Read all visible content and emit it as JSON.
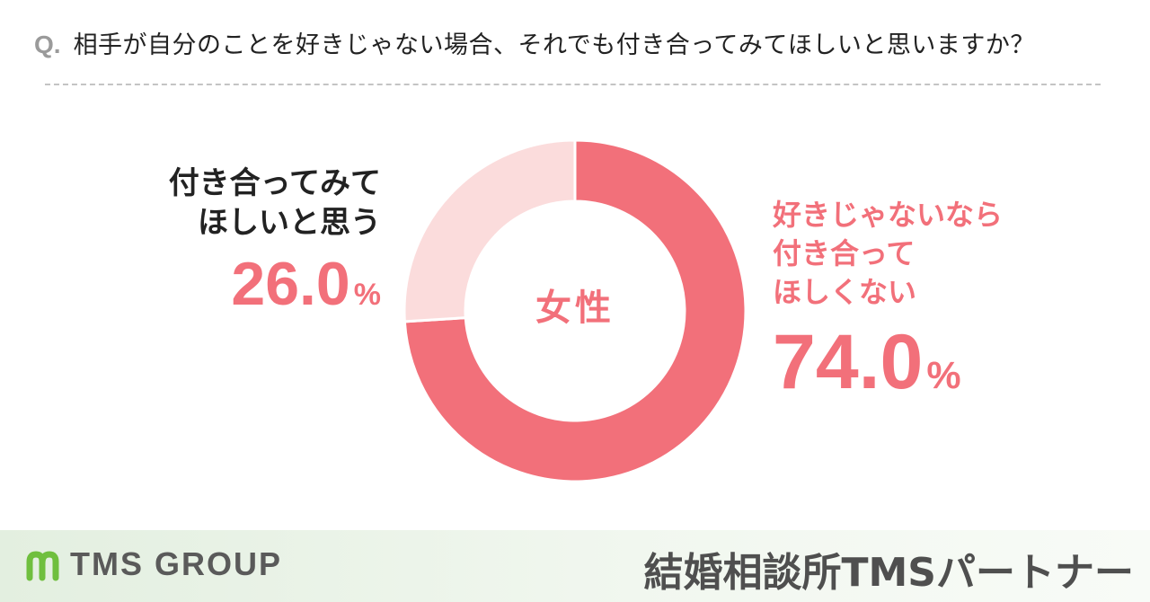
{
  "question": {
    "mark": "Q.",
    "text": "相手が自分のことを好きじゃない場合、それでも付き合ってみてほしいと思いますか？"
  },
  "chart_data": {
    "type": "donut",
    "center_label": "女性",
    "series": [
      {
        "label_lines": [
          "好きじゃないなら",
          "付き合って",
          "ほしくない"
        ],
        "value": 74.0,
        "value_text": "74.0",
        "unit": "%",
        "color": "#f2707a",
        "text_color": "#f2707a"
      },
      {
        "label_lines": [
          "付き合ってみて",
          "ほしいと思う"
        ],
        "value": 26.0,
        "value_text": "26.0",
        "unit": "%",
        "color": "#fbdcdc",
        "text_color": "#f2707a"
      }
    ]
  },
  "footer": {
    "logo_icon": "tms-m-leaf-icon",
    "logo_color": "#6fbf3e",
    "group_name": "TMS GROUP",
    "brand_name": "結婚相談所TMSパートナー"
  }
}
